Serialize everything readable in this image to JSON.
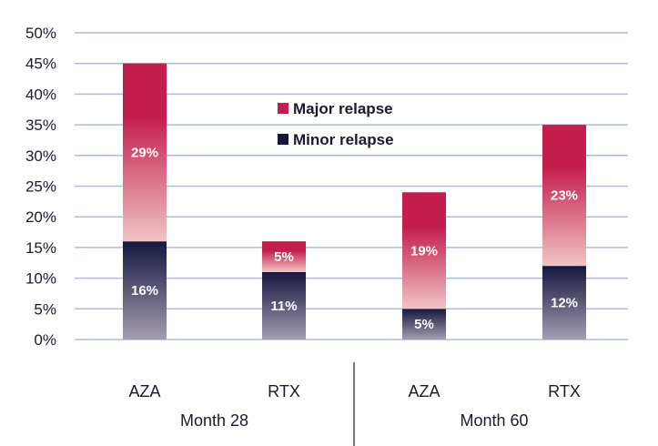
{
  "chart_data": {
    "type": "bar",
    "stacked": true,
    "categories": [
      "AZA",
      "RTX",
      "AZA",
      "RTX"
    ],
    "groups": [
      {
        "label": "Month 28",
        "categories": [
          "AZA",
          "RTX"
        ]
      },
      {
        "label": "Month 60",
        "categories": [
          "AZA",
          "RTX"
        ]
      }
    ],
    "series": [
      {
        "name": "Minor relapse",
        "values": [
          16,
          11,
          5,
          12
        ],
        "labels": [
          "16%",
          "11%",
          "5%",
          "12%"
        ],
        "color": "#15173f",
        "color_fade": "#a49db2"
      },
      {
        "name": "Major relapse",
        "values": [
          29,
          5,
          19,
          23
        ],
        "labels": [
          "29%",
          "5%",
          "19%",
          "23%"
        ],
        "color": "#c41e4e",
        "color_fade": "#f0c4c4"
      }
    ],
    "ylim": [
      0,
      50
    ],
    "yticks": [
      0,
      5,
      10,
      15,
      20,
      25,
      30,
      35,
      40,
      45,
      50
    ],
    "ytick_labels": [
      "0%",
      "5%",
      "10%",
      "15%",
      "20%",
      "25%",
      "30%",
      "35%",
      "40%",
      "45%",
      "50%"
    ],
    "grid": true,
    "grid_color": "#a9bde0",
    "legend": {
      "position": "top-center",
      "entries": [
        {
          "label": "Major relapse",
          "color": "#c41e4e"
        },
        {
          "label": "Minor relapse",
          "color": "#15173f"
        }
      ]
    }
  }
}
